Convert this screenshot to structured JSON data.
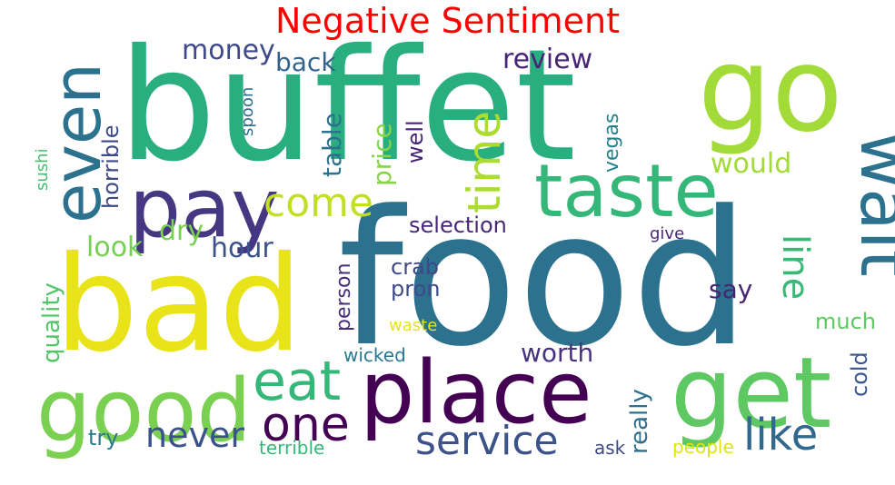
{
  "title": "Negative Sentiment",
  "title_color": "#ff0000",
  "words": [
    {
      "text": "buffet",
      "color": "#29af7f"
    },
    {
      "text": "food",
      "color": "#2c728e"
    },
    {
      "text": "go",
      "color": "#a2da37"
    },
    {
      "text": "bad",
      "color": "#e8e419"
    },
    {
      "text": "pay",
      "color": "#453781"
    },
    {
      "text": "taste",
      "color": "#35b779"
    },
    {
      "text": "place",
      "color": "#440154"
    },
    {
      "text": "get",
      "color": "#5ec962"
    },
    {
      "text": "good",
      "color": "#7ad151"
    },
    {
      "text": "wait",
      "color": "#2c728e"
    },
    {
      "text": "even",
      "color": "#2c728e"
    },
    {
      "text": "time",
      "color": "#addc30"
    },
    {
      "text": "come",
      "color": "#c2df23"
    },
    {
      "text": "eat",
      "color": "#35b779"
    },
    {
      "text": "one",
      "color": "#440154"
    },
    {
      "text": "service",
      "color": "#3b528b"
    },
    {
      "text": "like",
      "color": "#31688e"
    },
    {
      "text": "never",
      "color": "#3b528b"
    },
    {
      "text": "money",
      "color": "#3e4a89"
    },
    {
      "text": "back",
      "color": "#33638d"
    },
    {
      "text": "review",
      "color": "#482475"
    },
    {
      "text": "would",
      "color": "#a2da37"
    },
    {
      "text": "table",
      "color": "#2c728e"
    },
    {
      "text": "price",
      "color": "#86d549"
    },
    {
      "text": "well",
      "color": "#482475"
    },
    {
      "text": "vegas",
      "color": "#26828e"
    },
    {
      "text": "selection",
      "color": "#482878"
    },
    {
      "text": "horrible",
      "color": "#3e4989"
    },
    {
      "text": "spoon",
      "color": "#2e6f8e"
    },
    {
      "text": "sushi",
      "color": "#44bf70"
    },
    {
      "text": "dry",
      "color": "#7ad151"
    },
    {
      "text": "look",
      "color": "#75d054"
    },
    {
      "text": "hour",
      "color": "#3b528b"
    },
    {
      "text": "give",
      "color": "#482878"
    },
    {
      "text": "line",
      "color": "#38b977"
    },
    {
      "text": "say",
      "color": "#482475"
    },
    {
      "text": "crab",
      "color": "#3f4889"
    },
    {
      "text": "pron",
      "color": "#3e4a89"
    },
    {
      "text": "person",
      "color": "#472c7a"
    },
    {
      "text": "quality",
      "color": "#52c569"
    },
    {
      "text": "waste",
      "color": "#e5e419"
    },
    {
      "text": "much",
      "color": "#5ec962"
    },
    {
      "text": "worth",
      "color": "#46327e"
    },
    {
      "text": "really",
      "color": "#2e6f8e"
    },
    {
      "text": "wicked",
      "color": "#2a788e"
    },
    {
      "text": "cold",
      "color": "#39568c"
    },
    {
      "text": "try",
      "color": "#2a788e"
    },
    {
      "text": "terrible",
      "color": "#35b779"
    },
    {
      "text": "ask",
      "color": "#3e4989"
    },
    {
      "text": "people",
      "color": "#dde318"
    }
  ]
}
